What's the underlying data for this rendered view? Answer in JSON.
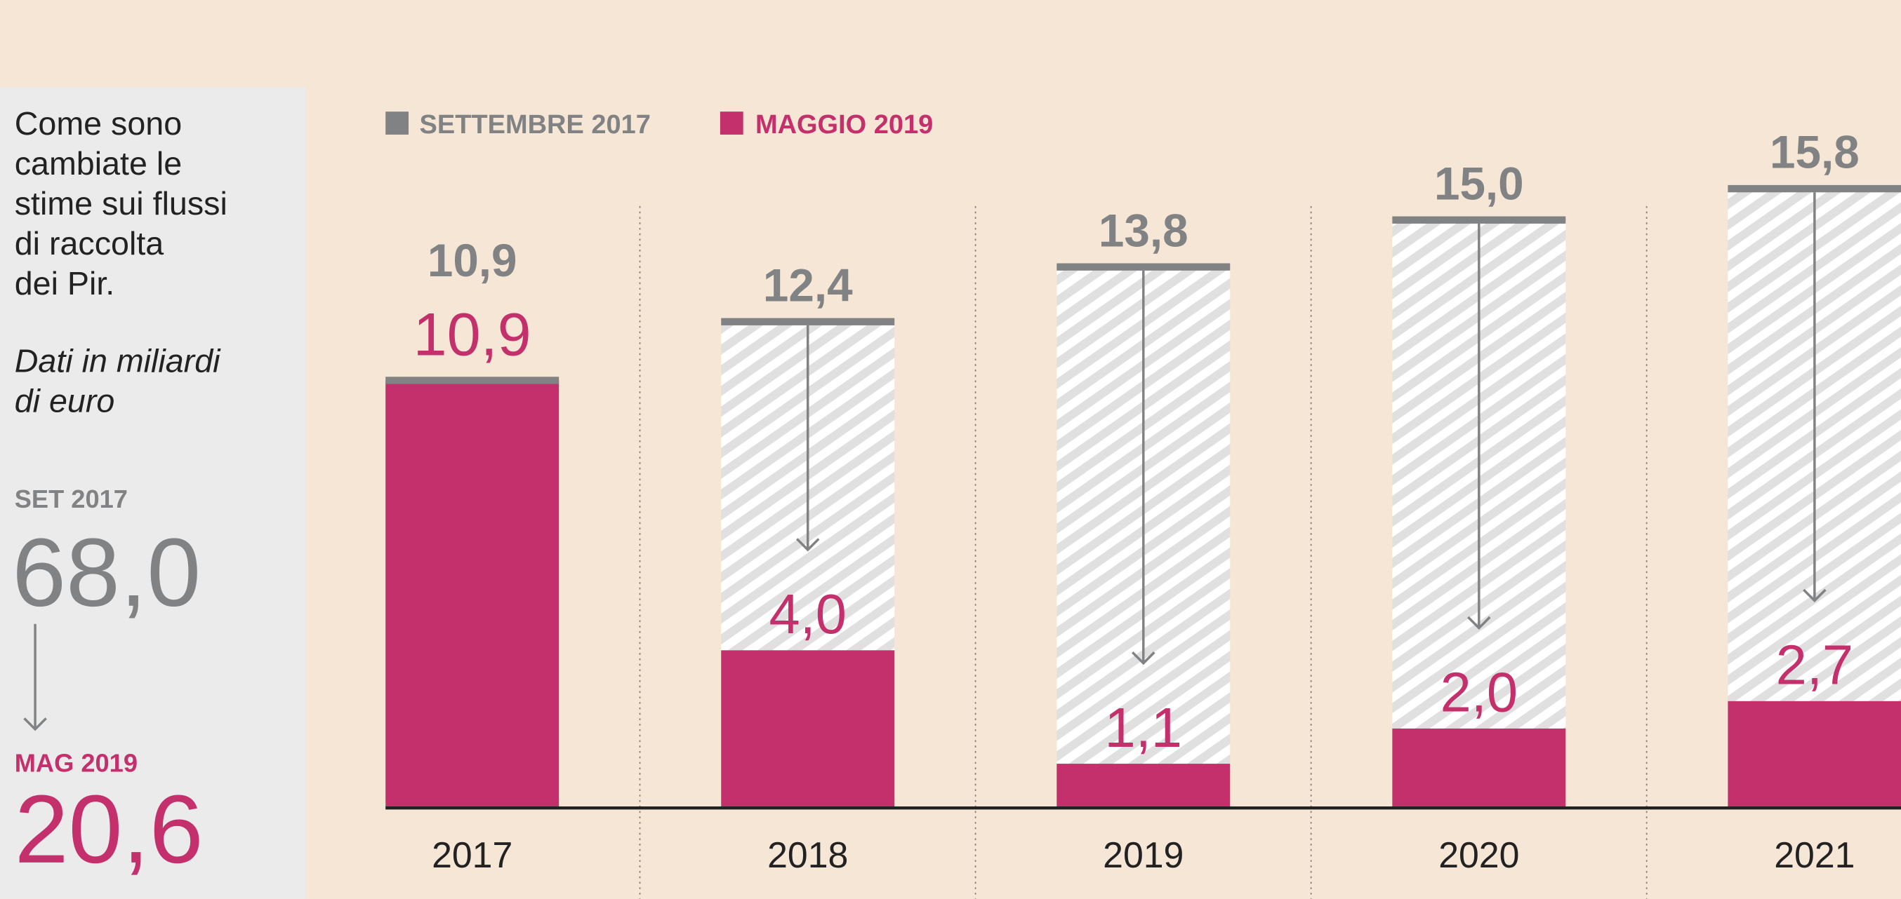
{
  "colors": {
    "background": "#f5e6d6",
    "panel": "#ebebeb",
    "may2019": "#c4306c",
    "sep2017": "#818284",
    "hatch": "#e0e0e0",
    "axis": "#222222",
    "text": "#222222"
  },
  "panel": {
    "title_lines": [
      "Come sono",
      "cambiate le",
      "stime sui flussi",
      "di raccolta",
      "dei Pir."
    ],
    "subtitle_lines": [
      "Dati in miliardi",
      "di euro"
    ],
    "total_before_label": "SET 2017",
    "total_before_value": "68,0",
    "total_after_label": "MAG 2019",
    "total_after_value": "20,6"
  },
  "chart_data": {
    "type": "bar",
    "categories": [
      "2017",
      "2018",
      "2019",
      "2020",
      "2021"
    ],
    "series": [
      {
        "name": "SETTEMBRE 2017",
        "values": [
          10.9,
          12.4,
          13.8,
          15.0,
          15.8
        ],
        "labels": [
          "10,9",
          "12,4",
          "13,8",
          "15,0",
          "15,8"
        ]
      },
      {
        "name": "MAGGIO 2019",
        "values": [
          10.9,
          4.0,
          1.1,
          2.0,
          2.7
        ],
        "labels": [
          "10,9",
          "4,0",
          "1,1",
          "2,0",
          "2,7"
        ]
      }
    ],
    "legend": "top-left",
    "grid": false,
    "ylim": [
      0,
      16
    ]
  }
}
